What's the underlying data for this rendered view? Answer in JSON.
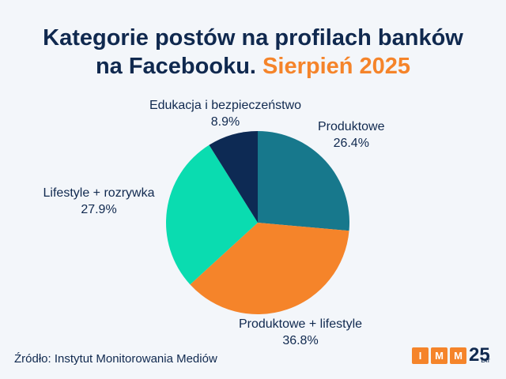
{
  "chart_data": {
    "type": "pie",
    "title": "Kategorie postów na profilach banków na Facebooku.",
    "title_highlight": "Sierpień 2025",
    "slices": [
      {
        "label": "Produktowe",
        "value": 26.4,
        "display": "26.4%",
        "color": "#17788c"
      },
      {
        "label": "Produktowe + lifestyle",
        "value": 36.8,
        "display": "36.8%",
        "color": "#f5842a"
      },
      {
        "label": "Lifestyle + rozrywka",
        "value": 27.9,
        "display": "27.9%",
        "color": "#0adcb0"
      },
      {
        "label": "Edukacja i bezpieczeństwo",
        "value": 8.9,
        "display": "8.9%",
        "color": "#0d2a54"
      }
    ]
  },
  "source": "Źródło: Instytut Monitorowania Mediów",
  "logo": {
    "letters": [
      "I",
      "M",
      "M"
    ],
    "number": "25",
    "sub": "LAT"
  }
}
